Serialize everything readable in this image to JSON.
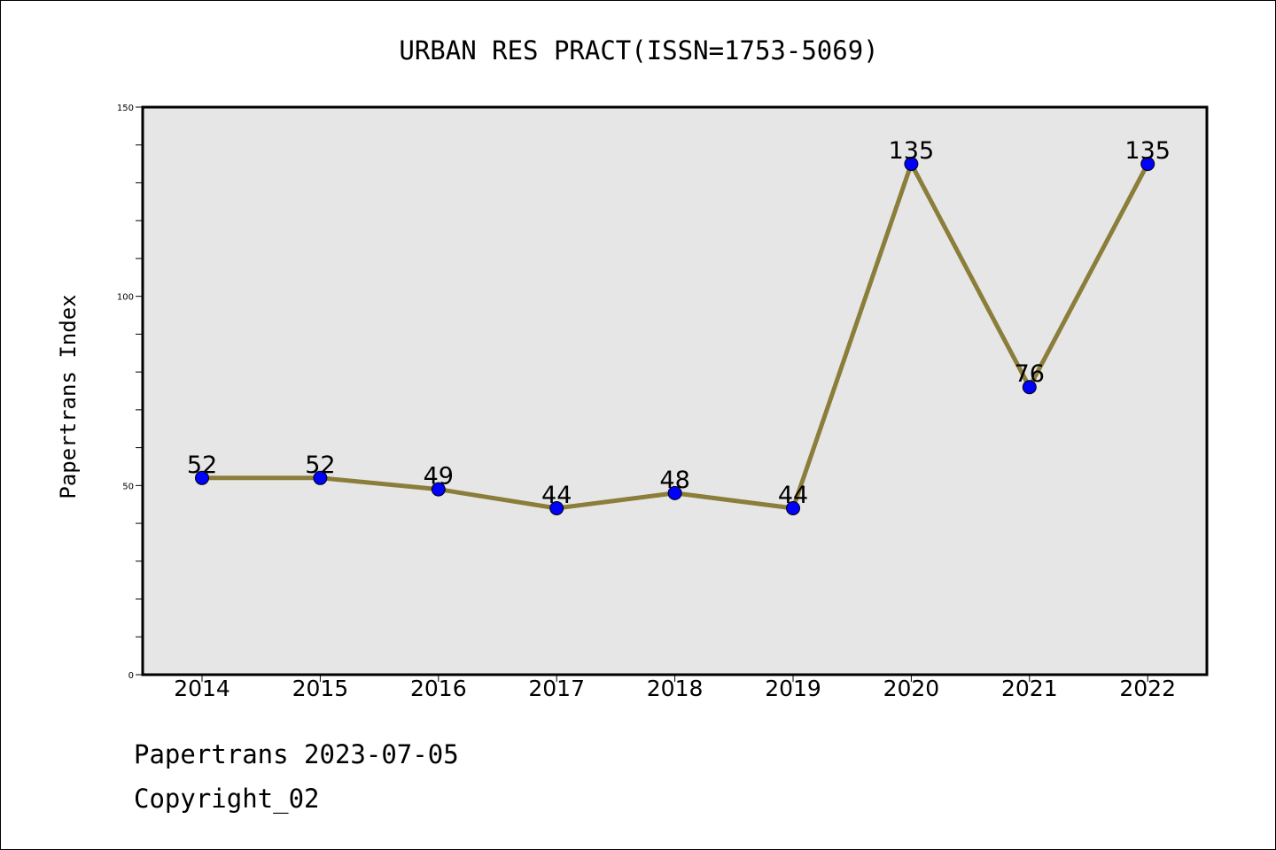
{
  "chart_data": {
    "type": "line",
    "title": "URBAN RES PRACT(ISSN=1753-5069)",
    "xlabel": "",
    "ylabel": "Papertrans Index",
    "categories": [
      "2014",
      "2015",
      "2016",
      "2017",
      "2018",
      "2019",
      "2020",
      "2021",
      "2022"
    ],
    "series": [
      {
        "values": [
          52,
          52,
          49,
          44,
          48,
          44,
          135,
          76,
          135
        ]
      }
    ],
    "data_labels": [
      "52",
      "52",
      "49",
      "44",
      "48",
      "44",
      "135",
      "76",
      "135"
    ],
    "ylim": [
      0,
      150
    ],
    "y_tick_labels": [
      "0",
      "50",
      "100",
      "150"
    ],
    "y_minor_step": 10,
    "grid": false,
    "legend": "none",
    "colors": {
      "line": "#8b7d3a",
      "marker": "#0000ff",
      "plot_background": "#e6e6e6"
    }
  },
  "footer": {
    "date_line": "Papertrans 2023-07-05",
    "copyright_line": "Copyright_02"
  }
}
